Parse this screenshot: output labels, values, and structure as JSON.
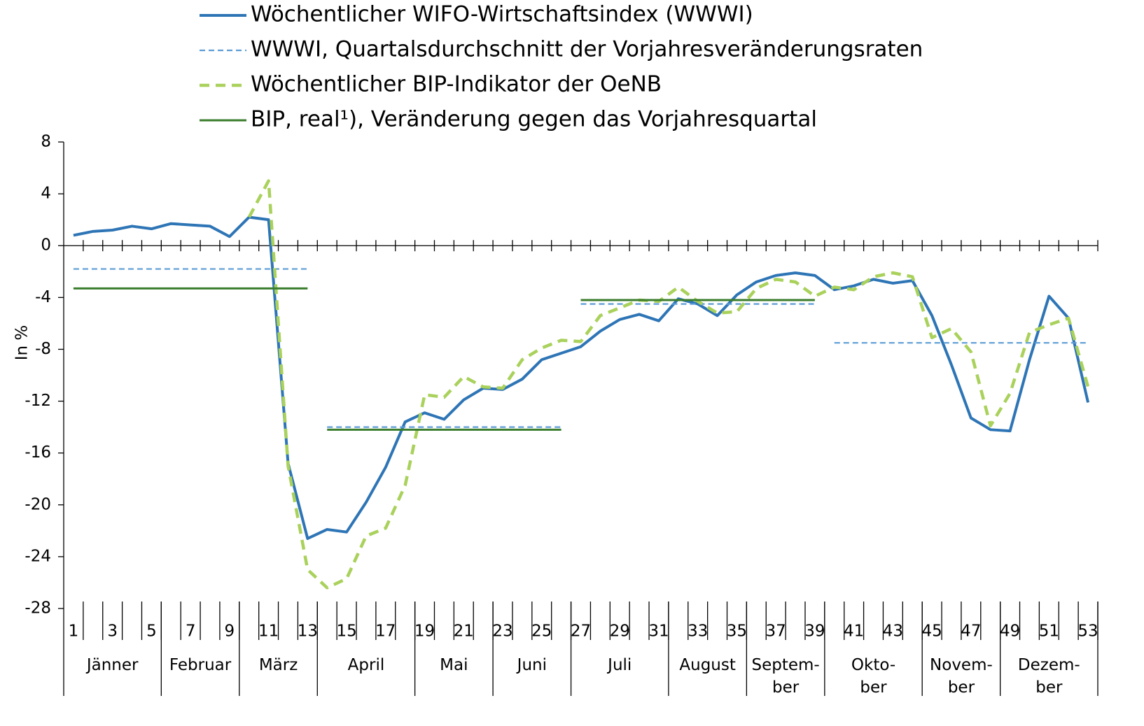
{
  "chart_data": {
    "type": "line",
    "y_label": "In %",
    "ylim": [
      -28,
      8
    ],
    "yticks": [
      -28,
      -24,
      -20,
      -16,
      -12,
      -8,
      -4,
      0,
      4,
      8
    ],
    "xlim": [
      0.5,
      53.5
    ],
    "x": [
      1,
      2,
      3,
      4,
      5,
      6,
      7,
      8,
      9,
      10,
      11,
      12,
      13,
      14,
      15,
      16,
      17,
      18,
      19,
      20,
      21,
      22,
      23,
      24,
      25,
      26,
      27,
      28,
      29,
      30,
      31,
      32,
      33,
      34,
      35,
      36,
      37,
      38,
      39,
      40,
      41,
      42,
      43,
      44,
      45,
      46,
      47,
      48,
      49,
      50,
      51,
      52,
      53
    ],
    "xticks": [
      1,
      3,
      5,
      7,
      9,
      11,
      13,
      15,
      17,
      19,
      21,
      23,
      25,
      27,
      29,
      31,
      33,
      35,
      37,
      39,
      41,
      43,
      45,
      47,
      49,
      51,
      53
    ],
    "month_groups": [
      {
        "label": [
          "Jänner"
        ],
        "first_week": 1,
        "last_week": 5
      },
      {
        "label": [
          "Februar"
        ],
        "first_week": 6,
        "last_week": 9
      },
      {
        "label": [
          "März"
        ],
        "first_week": 10,
        "last_week": 13
      },
      {
        "label": [
          "April"
        ],
        "first_week": 14,
        "last_week": 18
      },
      {
        "label": [
          "Mai"
        ],
        "first_week": 19,
        "last_week": 22
      },
      {
        "label": [
          "Juni"
        ],
        "first_week": 23,
        "last_week": 26
      },
      {
        "label": [
          "Juli"
        ],
        "first_week": 27,
        "last_week": 31
      },
      {
        "label": [
          "August"
        ],
        "first_week": 32,
        "last_week": 35
      },
      {
        "label": [
          "Septem-",
          "ber"
        ],
        "first_week": 36,
        "last_week": 39
      },
      {
        "label": [
          "Okto-",
          "ber"
        ],
        "first_week": 40,
        "last_week": 44
      },
      {
        "label": [
          "Novem-",
          "ber"
        ],
        "first_week": 45,
        "last_week": 48
      },
      {
        "label": [
          "Dezem-",
          "ber"
        ],
        "first_week": 49,
        "last_week": 53
      }
    ],
    "series": [
      {
        "name": "Wöchentlicher WIFO-Wirtschaftsindex (WWWI)",
        "color": "#2e75b6",
        "style": "solid",
        "values": [
          0.8,
          1.1,
          1.2,
          1.5,
          1.3,
          1.7,
          1.6,
          1.5,
          0.7,
          2.2,
          2.0,
          -16.8,
          -22.6,
          -21.9,
          -22.1,
          -19.8,
          -17.1,
          -13.6,
          -12.9,
          -13.4,
          -11.9,
          -11.0,
          -11.1,
          -10.3,
          -8.8,
          -8.3,
          -7.8,
          -6.6,
          -5.7,
          -5.3,
          -5.8,
          -4.1,
          -4.5,
          -5.4,
          -3.8,
          -2.8,
          -2.3,
          -2.1,
          -2.3,
          -3.4,
          -3.1,
          -2.6,
          -2.9,
          -2.7,
          -5.4,
          -9.2,
          -13.3,
          -14.2,
          -14.3,
          -8.8,
          -3.9,
          -5.6,
          -12.1
        ]
      },
      {
        "name": "WWWI, Quartalsdurchschnitt der Vorjahresveränderungsraten",
        "color": "#5b9bd5",
        "style": "dashed-thin",
        "segments": [
          {
            "first_week": 1,
            "last_week": 13,
            "value": -1.8
          },
          {
            "first_week": 14,
            "last_week": 26,
            "value": -14.0
          },
          {
            "first_week": 27,
            "last_week": 39,
            "value": -4.5
          },
          {
            "first_week": 40,
            "last_week": 53,
            "value": -7.5
          }
        ]
      },
      {
        "name": "Wöchentlicher BIP-Indikator der OeNB",
        "color": "#a9d15b",
        "style": "dashed",
        "values": [
          null,
          null,
          null,
          null,
          null,
          null,
          null,
          null,
          null,
          2.2,
          5.0,
          -17.0,
          -25.0,
          -26.4,
          -25.7,
          -22.4,
          -21.8,
          -18.5,
          -11.5,
          -11.7,
          -10.1,
          -10.9,
          -11.0,
          -8.8,
          -7.9,
          -7.3,
          -7.4,
          -5.4,
          -4.8,
          -4.2,
          -4.3,
          -3.2,
          -4.3,
          -5.2,
          -5.1,
          -3.3,
          -2.6,
          -2.8,
          -3.9,
          -3.2,
          -3.4,
          -2.4,
          -2.1,
          -2.4,
          -7.1,
          -6.4,
          -8.2,
          -13.9,
          -11.4,
          -6.7,
          -6.1,
          -5.6,
          -10.9
        ]
      },
      {
        "name": "BIP, real¹), Veränderung gegen das Vorjahresquartal",
        "color": "#3a7d2c",
        "style": "solid",
        "segments": [
          {
            "first_week": 1,
            "last_week": 13,
            "value": -3.3
          },
          {
            "first_week": 14,
            "last_week": 26,
            "value": -14.2
          },
          {
            "first_week": 27,
            "last_week": 39,
            "value": -4.2
          }
        ]
      }
    ]
  }
}
